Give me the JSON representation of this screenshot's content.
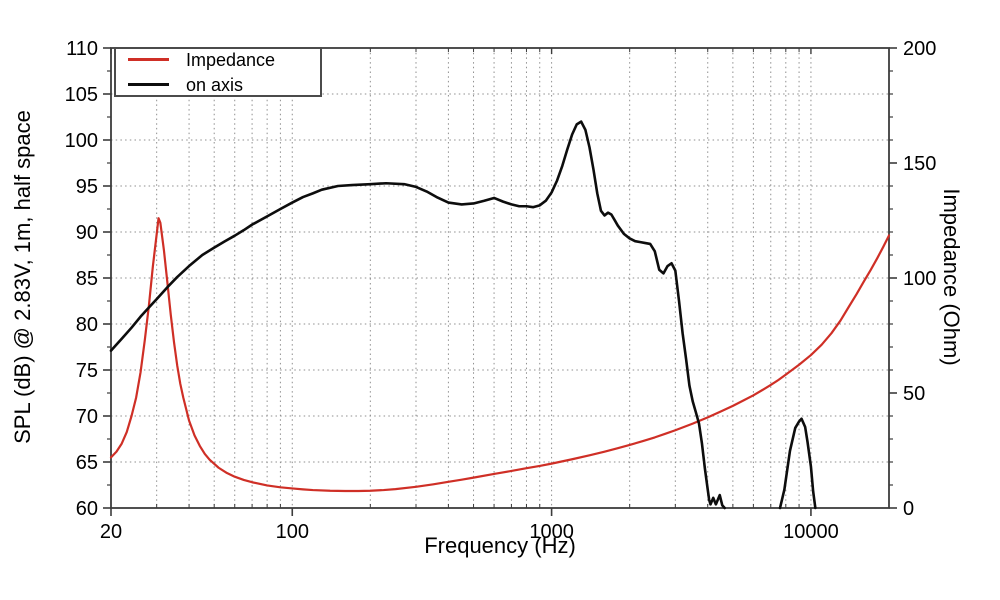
{
  "chart_data": {
    "type": "line",
    "title": "",
    "xlabel": "Frequency (Hz)",
    "ylabel_left": "SPL (dB) @ 2.83V, 1m, half space",
    "ylabel_right": "Impedance (Ohm)",
    "x_scale": "log",
    "x_range": [
      20,
      20000
    ],
    "x_tick_labels": [
      "20",
      "100",
      "1000",
      "10000"
    ],
    "x_tick_values": [
      20,
      100,
      1000,
      10000
    ],
    "y_left_range": [
      60,
      110
    ],
    "y_left_tick_step": 5,
    "y_left_minor_step": 2.5,
    "y_right_range": [
      0,
      200
    ],
    "y_right_tick_step": 50,
    "y_right_minor_step": 10,
    "grid": "dotted",
    "grid_color": "#8f8f8f",
    "border_color": "#3c3c3c",
    "legend": {
      "position": "top-left",
      "entries": [
        {
          "label": "Impedance",
          "color": "#cf2f26"
        },
        {
          "label": "on axis",
          "color": "#0d0d0d"
        }
      ]
    },
    "series": [
      {
        "name": "Impedance",
        "axis": "right",
        "unit": "Ohm",
        "color": "#cf2f26",
        "width": 2.2,
        "segments": [
          [
            [
              20,
              22
            ],
            [
              21,
              24.5
            ],
            [
              22,
              28
            ],
            [
              23,
              33
            ],
            [
              24,
              40
            ],
            [
              25,
              48
            ],
            [
              26,
              59
            ],
            [
              27,
              73
            ],
            [
              28,
              88
            ],
            [
              29,
              105
            ],
            [
              30,
              119
            ],
            [
              30.5,
              126
            ],
            [
              31,
              124
            ],
            [
              32,
              112
            ],
            [
              33,
              98
            ],
            [
              34,
              84
            ],
            [
              35,
              72
            ],
            [
              36,
              62
            ],
            [
              37,
              54
            ],
            [
              38,
              48
            ],
            [
              40,
              38
            ],
            [
              42,
              31.5
            ],
            [
              44,
              27
            ],
            [
              46,
              23.5
            ],
            [
              48,
              21
            ],
            [
              52,
              17.5
            ],
            [
              56,
              15.2
            ],
            [
              60,
              13.6
            ],
            [
              65,
              12.2
            ],
            [
              70,
              11.2
            ],
            [
              80,
              9.8
            ],
            [
              90,
              9.0
            ],
            [
              100,
              8.5
            ],
            [
              110,
              8.1
            ],
            [
              120,
              7.8
            ],
            [
              140,
              7.5
            ],
            [
              160,
              7.4
            ],
            [
              180,
              7.4
            ],
            [
              200,
              7.5
            ],
            [
              225,
              7.8
            ],
            [
              250,
              8.2
            ],
            [
              300,
              9.2
            ],
            [
              350,
              10.3
            ],
            [
              400,
              11.4
            ],
            [
              450,
              12.3
            ],
            [
              500,
              13.2
            ],
            [
              600,
              14.8
            ],
            [
              700,
              16.1
            ],
            [
              800,
              17.3
            ],
            [
              900,
              18.3
            ],
            [
              1000,
              19.3
            ],
            [
              1200,
              21.2
            ],
            [
              1400,
              22.9
            ],
            [
              1600,
              24.5
            ],
            [
              1800,
              26.0
            ],
            [
              2000,
              27.4
            ],
            [
              2250,
              29.1
            ],
            [
              2500,
              30.7
            ],
            [
              2750,
              32.3
            ],
            [
              3000,
              33.8
            ],
            [
              3500,
              36.7
            ],
            [
              4000,
              39.4
            ],
            [
              4500,
              42.0
            ],
            [
              5000,
              44.4
            ],
            [
              5500,
              46.8
            ],
            [
              6000,
              49.0
            ],
            [
              6500,
              51.3
            ],
            [
              7000,
              53.5
            ],
            [
              7500,
              55.7
            ],
            [
              8000,
              58.0
            ],
            [
              9000,
              62.3
            ],
            [
              10000,
              66.5
            ],
            [
              11000,
              71.0
            ],
            [
              12000,
              76.0
            ],
            [
              13000,
              81.5
            ],
            [
              14000,
              87.5
            ],
            [
              15000,
              93.0
            ],
            [
              16000,
              98.5
            ],
            [
              17000,
              103.5
            ],
            [
              18000,
              108.5
            ],
            [
              19000,
              113.5
            ],
            [
              20000,
              118.5
            ]
          ]
        ]
      },
      {
        "name": "on axis",
        "axis": "left",
        "unit": "dB SPL",
        "color": "#0d0d0d",
        "width": 2.6,
        "segments": [
          [
            [
              20,
              77.1
            ],
            [
              22,
              78.4
            ],
            [
              24,
              79.6
            ],
            [
              26,
              80.8
            ],
            [
              28,
              81.8
            ],
            [
              30,
              82.7
            ],
            [
              33,
              84.0
            ],
            [
              36,
              85.1
            ],
            [
              40,
              86.3
            ],
            [
              45,
              87.5
            ],
            [
              50,
              88.3
            ],
            [
              55,
              89.0
            ],
            [
              60,
              89.6
            ],
            [
              65,
              90.2
            ],
            [
              70,
              90.8
            ],
            [
              80,
              91.7
            ],
            [
              90,
              92.5
            ],
            [
              100,
              93.2
            ],
            [
              110,
              93.8
            ],
            [
              120,
              94.2
            ],
            [
              130,
              94.6
            ],
            [
              150,
              95.0
            ],
            [
              170,
              95.1
            ],
            [
              200,
              95.2
            ],
            [
              230,
              95.3
            ],
            [
              270,
              95.2
            ],
            [
              300,
              94.9
            ],
            [
              330,
              94.4
            ],
            [
              360,
              93.8
            ],
            [
              400,
              93.2
            ],
            [
              450,
              93.0
            ],
            [
              500,
              93.1
            ],
            [
              550,
              93.4
            ],
            [
              600,
              93.7
            ],
            [
              650,
              93.3
            ],
            [
              700,
              93.0
            ],
            [
              750,
              92.8
            ],
            [
              800,
              92.8
            ],
            [
              850,
              92.7
            ],
            [
              900,
              92.9
            ],
            [
              950,
              93.4
            ],
            [
              1000,
              94.3
            ],
            [
              1050,
              95.6
            ],
            [
              1100,
              97.2
            ],
            [
              1150,
              99.0
            ],
            [
              1200,
              100.6
            ],
            [
              1250,
              101.7
            ],
            [
              1300,
              102.0
            ],
            [
              1350,
              101.1
            ],
            [
              1400,
              99.2
            ],
            [
              1450,
              96.8
            ],
            [
              1500,
              94.2
            ],
            [
              1550,
              92.3
            ],
            [
              1600,
              91.8
            ],
            [
              1650,
              92.1
            ],
            [
              1700,
              91.9
            ],
            [
              1750,
              91.3
            ],
            [
              1800,
              90.7
            ],
            [
              1900,
              89.8
            ],
            [
              2000,
              89.3
            ],
            [
              2100,
              89.0
            ],
            [
              2200,
              88.9
            ],
            [
              2300,
              88.8
            ],
            [
              2400,
              88.7
            ],
            [
              2500,
              87.9
            ],
            [
              2600,
              85.9
            ],
            [
              2700,
              85.5
            ],
            [
              2800,
              86.3
            ],
            [
              2900,
              86.6
            ],
            [
              3000,
              85.8
            ],
            [
              3100,
              82.5
            ],
            [
              3200,
              79.0
            ],
            [
              3300,
              76.2
            ],
            [
              3400,
              73.3
            ],
            [
              3500,
              71.6
            ],
            [
              3600,
              70.4
            ],
            [
              3700,
              69.2
            ],
            [
              3800,
              67.0
            ],
            [
              3900,
              64.3
            ],
            [
              4000,
              62.0
            ],
            [
              4050,
              60.9
            ],
            [
              4100,
              60.4
            ],
            [
              4200,
              61.1
            ],
            [
              4300,
              60.4
            ],
            [
              4450,
              61.4
            ],
            [
              4550,
              60.3
            ],
            [
              4650,
              60.0
            ]
          ],
          [
            [
              7600,
              60.0
            ],
            [
              7900,
              62.0
            ],
            [
              8300,
              66.2
            ],
            [
              8700,
              68.7
            ],
            [
              9000,
              69.4
            ],
            [
              9200,
              69.7
            ],
            [
              9500,
              68.8
            ],
            [
              9700,
              67.2
            ],
            [
              10000,
              64.5
            ],
            [
              10200,
              61.8
            ],
            [
              10400,
              60.0
            ]
          ]
        ]
      }
    ]
  }
}
